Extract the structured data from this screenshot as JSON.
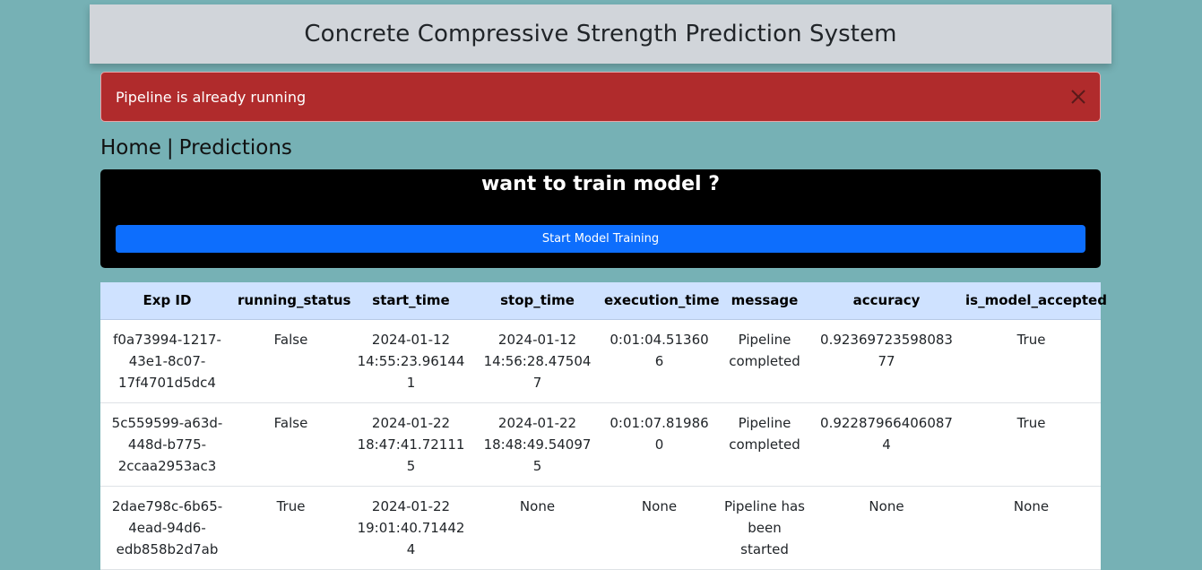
{
  "header": {
    "title": "Concrete Compressive Strength Prediction System"
  },
  "alert": {
    "message": "Pipeline is already running",
    "close_icon": "close-icon"
  },
  "nav": {
    "home": "Home",
    "separator": "|",
    "predictions": "Predictions"
  },
  "train": {
    "title": "want to train model ?",
    "button_label": "Start Model Training"
  },
  "table": {
    "columns": [
      "Exp ID",
      "running_status",
      "start_time",
      "stop_time",
      "execution_time",
      "message",
      "accuracy",
      "is_model_accepted"
    ],
    "rows": [
      {
        "exp_id": "f0a73994-1217-43e1-8c07-17f4701d5dc4",
        "running_status": "False",
        "start_time": "2024-01-12 14:55:23.961441",
        "stop_time": "2024-01-12 14:56:28.475047",
        "execution_time": "0:01:04.513606",
        "message": "Pipeline completed",
        "accuracy": "0.9236972359808377",
        "is_model_accepted": "True"
      },
      {
        "exp_id": "5c559599-a63d-448d-b775-2ccaa2953ac3",
        "running_status": "False",
        "start_time": "2024-01-22 18:47:41.721115",
        "stop_time": "2024-01-22 18:48:49.540975",
        "execution_time": "0:01:07.819860",
        "message": "Pipeline completed",
        "accuracy": "0.922879664060874",
        "is_model_accepted": "True"
      },
      {
        "exp_id": "2dae798c-6b65-4ead-94d6-edb858b2d7ab",
        "running_status": "True",
        "start_time": "2024-01-22 19:01:40.714424",
        "stop_time": "None",
        "execution_time": "None",
        "message": "Pipeline has been started",
        "accuracy": "None",
        "is_model_accepted": "None"
      }
    ]
  },
  "colors": {
    "background": "#76b1b5",
    "header_bg": "#d1d5da",
    "alert_bg": "#b02b2c",
    "train_bg": "#000000",
    "button_bg": "#0d6efd",
    "table_header_bg": "#cfe2ff"
  }
}
